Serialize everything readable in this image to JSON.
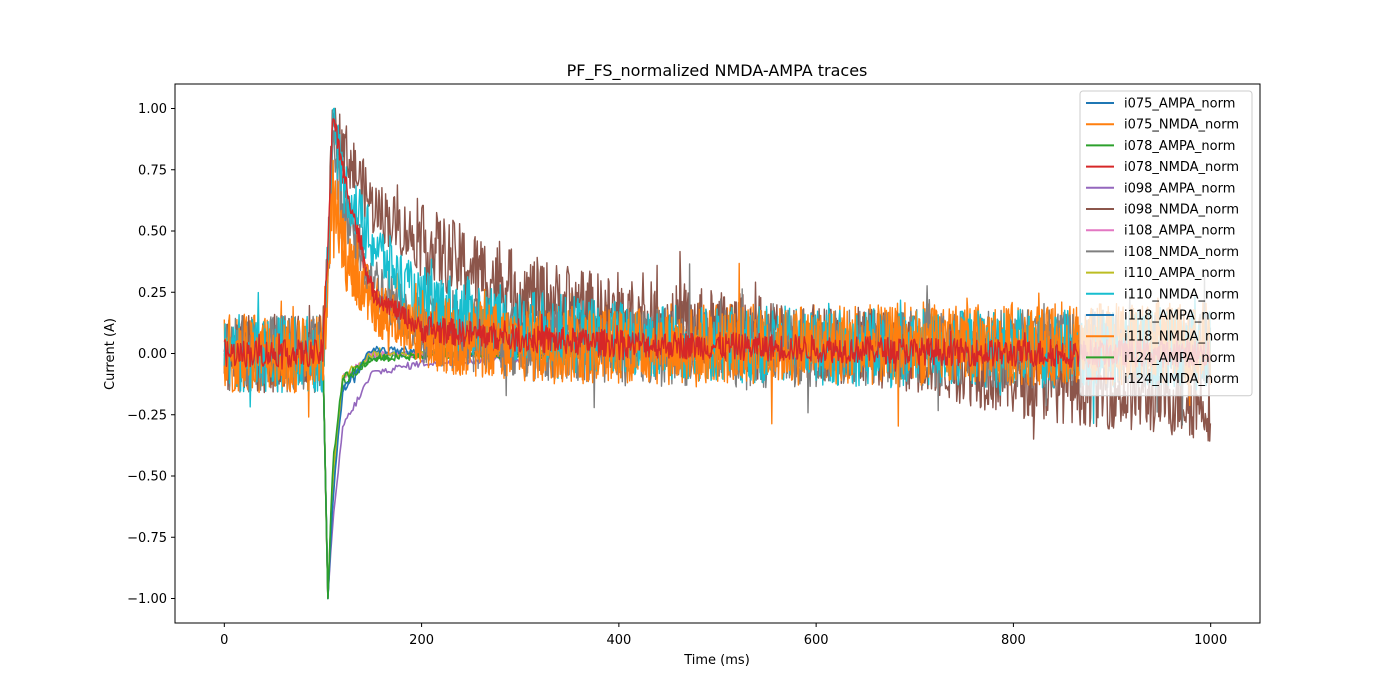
{
  "chart_data": {
    "type": "line",
    "title": "PF_FS_normalized NMDA-AMPA traces",
    "xlabel": "Time (ms)",
    "ylabel": "Current (A)",
    "xlim": [
      -50,
      1050
    ],
    "ylim": [
      -1.1,
      1.1
    ],
    "xticks": [
      0,
      200,
      400,
      600,
      800,
      1000
    ],
    "yticks": [
      -1.0,
      -0.75,
      -0.5,
      -0.25,
      0.0,
      0.25,
      0.5,
      0.75,
      1.0
    ],
    "xtick_labels": [
      "0",
      "200",
      "400",
      "600",
      "800",
      "1000"
    ],
    "ytick_labels": [
      "−1.00",
      "−0.75",
      "−0.50",
      "−0.25",
      "0.00",
      "0.25",
      "0.50",
      "0.75",
      "1.00"
    ],
    "grid": false,
    "legend_position": "top-right",
    "x": [
      0,
      50,
      100,
      105,
      110,
      120,
      150,
      200,
      300,
      400,
      500,
      600,
      700,
      800,
      900,
      1000
    ],
    "series": [
      {
        "name": "i075_AMPA_norm",
        "color": "#1f77b4",
        "kind": "AMPA",
        "values": [
          0,
          0,
          0,
          -1.0,
          -0.55,
          -0.15,
          0.0,
          0.0,
          0.0,
          0.0,
          0.0,
          0.0,
          0.0,
          0.0,
          0.0,
          0.0
        ]
      },
      {
        "name": "i075_NMDA_norm",
        "color": "#ff7f0e",
        "kind": "NMDA",
        "values": [
          0.0,
          0.0,
          0.0,
          0.3,
          0.65,
          0.4,
          0.2,
          0.08,
          0.05,
          0.05,
          0.05,
          0.05,
          0.05,
          0.05,
          0.05,
          0.05
        ]
      },
      {
        "name": "i078_AMPA_norm",
        "color": "#2ca02c",
        "kind": "AMPA",
        "values": [
          0,
          0,
          0,
          -1.0,
          -0.5,
          -0.12,
          -0.02,
          0.0,
          0.0,
          0.0,
          0.0,
          0.0,
          0.0,
          0.0,
          0.0,
          0.0
        ]
      },
      {
        "name": "i078_NMDA_norm",
        "color": "#d62728",
        "kind": "NMDA",
        "values": [
          0.0,
          0.0,
          0.0,
          0.35,
          1.0,
          0.7,
          0.25,
          0.1,
          0.05,
          0.03,
          0.02,
          0.02,
          0.01,
          0.01,
          0.01,
          0.01
        ]
      },
      {
        "name": "i098_AMPA_norm",
        "color": "#9467bd",
        "kind": "AMPA",
        "values": [
          0,
          0,
          0,
          -1.0,
          -0.7,
          -0.3,
          -0.08,
          -0.04,
          -0.02,
          0.0,
          0.0,
          0.0,
          0.0,
          0.0,
          0.0,
          0.0
        ]
      },
      {
        "name": "i098_NMDA_norm",
        "color": "#8c564b",
        "kind": "NMDA",
        "values": [
          0.0,
          0.0,
          0.0,
          0.4,
          0.95,
          0.85,
          0.6,
          0.45,
          0.25,
          0.15,
          0.1,
          0.05,
          0.0,
          -0.1,
          -0.15,
          -0.2
        ]
      },
      {
        "name": "i108_AMPA_norm",
        "color": "#e377c2",
        "kind": "AMPA",
        "values": [
          0,
          0,
          0,
          -1.0,
          -0.5,
          -0.1,
          0.0,
          0.0,
          0.0,
          0.0,
          0.0,
          0.0,
          0.0,
          0.0,
          0.0,
          0.0
        ]
      },
      {
        "name": "i108_NMDA_norm",
        "color": "#7f7f7f",
        "kind": "NMDA",
        "values": [
          0.0,
          0.0,
          0.0,
          0.3,
          0.85,
          0.6,
          0.3,
          0.12,
          0.05,
          0.03,
          0.02,
          0.02,
          0.02,
          0.02,
          0.02,
          0.02
        ]
      },
      {
        "name": "i110_AMPA_norm",
        "color": "#bcbd22",
        "kind": "AMPA",
        "values": [
          0,
          0,
          0,
          -1.0,
          -0.5,
          -0.1,
          0.0,
          0.0,
          0.0,
          0.0,
          0.0,
          0.0,
          0.0,
          0.0,
          0.0,
          0.0
        ]
      },
      {
        "name": "i110_NMDA_norm",
        "color": "#17becf",
        "kind": "NMDA",
        "values": [
          0.0,
          0.0,
          0.0,
          0.4,
          0.95,
          0.7,
          0.45,
          0.2,
          0.1,
          0.06,
          0.04,
          0.03,
          0.02,
          0.02,
          0.02,
          0.02
        ]
      },
      {
        "name": "i118_AMPA_norm",
        "color": "#1f77b4",
        "kind": "AMPA",
        "values": [
          0,
          0,
          0,
          -1.0,
          -0.6,
          -0.15,
          0.02,
          0.0,
          0.0,
          0.0,
          0.0,
          0.0,
          0.0,
          0.0,
          0.0,
          0.0
        ]
      },
      {
        "name": "i118_NMDA_norm",
        "color": "#ff7f0e",
        "kind": "NMDA",
        "values": [
          0.0,
          0.0,
          0.0,
          0.3,
          0.7,
          0.45,
          0.2,
          0.08,
          0.04,
          0.03,
          0.03,
          0.03,
          0.03,
          0.03,
          0.03,
          0.03
        ]
      },
      {
        "name": "i124_AMPA_norm",
        "color": "#2ca02c",
        "kind": "AMPA",
        "values": [
          0,
          0,
          0,
          -1.0,
          -0.45,
          -0.1,
          -0.02,
          -0.01,
          -0.01,
          0.0,
          0.0,
          0.0,
          0.0,
          0.0,
          0.0,
          0.0
        ]
      },
      {
        "name": "i124_NMDA_norm",
        "color": "#d62728",
        "kind": "NMDA",
        "values": [
          0.0,
          0.0,
          0.0,
          0.45,
          0.98,
          0.75,
          0.25,
          0.1,
          0.06,
          0.04,
          0.03,
          0.02,
          0.01,
          0.0,
          0.0,
          0.0
        ]
      }
    ]
  }
}
